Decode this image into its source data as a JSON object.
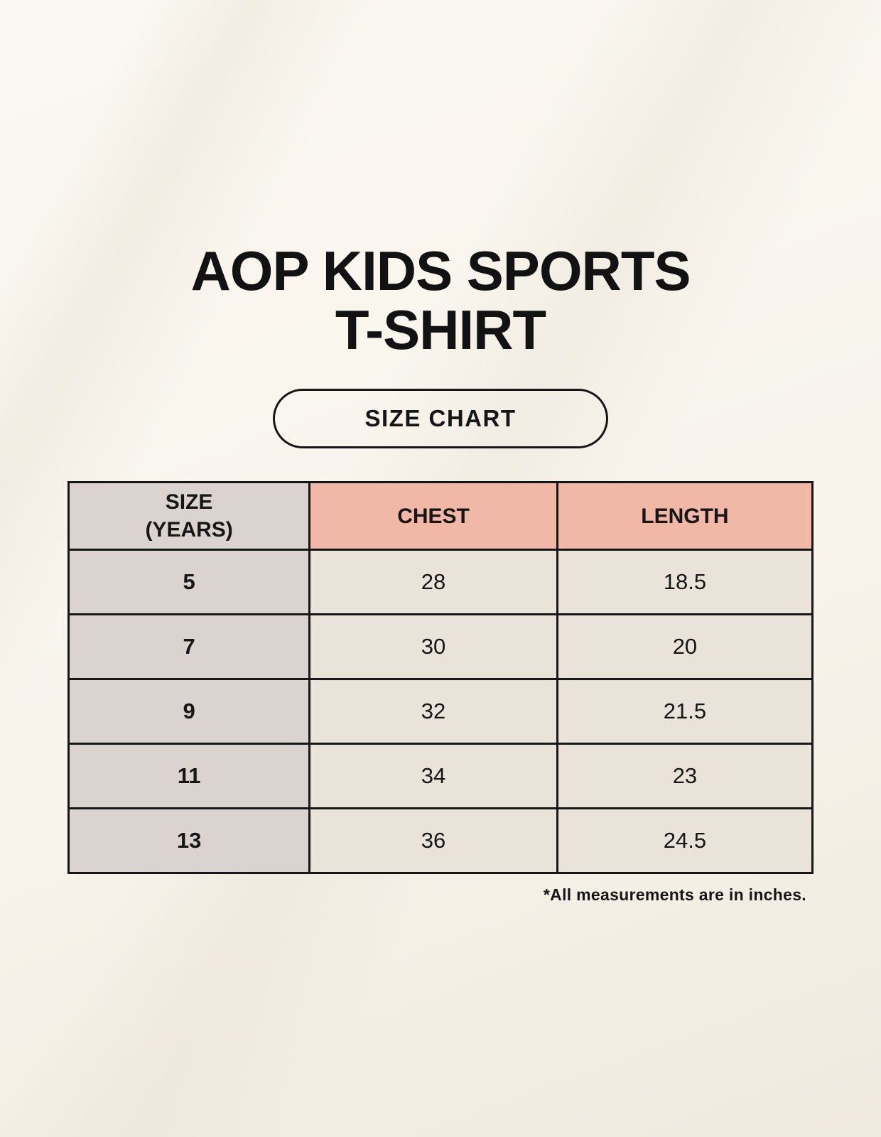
{
  "header": {
    "title_line1": "AOP KIDS SPORTS",
    "title_line2": "T-SHIRT",
    "badge_label": "SIZE CHART"
  },
  "table_header": {
    "size_line1": "SIZE",
    "size_line2": "(YEARS)",
    "chest": "CHEST",
    "length": "LENGTH"
  },
  "chart_data": {
    "type": "table",
    "title": "AOP KIDS SPORTS T-SHIRT",
    "subtitle": "SIZE CHART",
    "columns": [
      "SIZE (YEARS)",
      "CHEST",
      "LENGTH"
    ],
    "rows": [
      [
        "5",
        "28",
        "18.5"
      ],
      [
        "7",
        "30",
        "20"
      ],
      [
        "9",
        "32",
        "21.5"
      ],
      [
        "11",
        "34",
        "23"
      ],
      [
        "13",
        "36",
        "24.5"
      ]
    ],
    "note": "*All measurements are in inches.",
    "units": "inches"
  },
  "colors": {
    "background": "#f8f4ec",
    "cell_cream": "#eae3d9",
    "cell_gray": "#dad3cf",
    "header_pink": "#f2b8a7",
    "border_black": "#161616",
    "text_black": "#121212"
  }
}
